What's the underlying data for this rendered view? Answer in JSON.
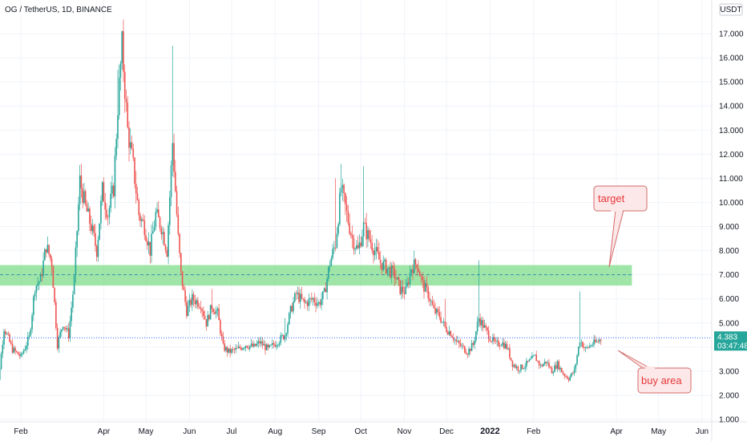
{
  "header": {
    "symbol_title": "OG / TetherUS, 1D, BINANCE"
  },
  "chart_data": {
    "type": "candlestick",
    "currency_label": "USDT",
    "y_ticks": [
      "1.000",
      "2.000",
      "3.000",
      "4.000",
      "5.000",
      "6.000",
      "7.000",
      "8.000",
      "9.000",
      "10.000",
      "11.000",
      "12.000",
      "13.000",
      "14.000",
      "15.000",
      "16.000",
      "17.000"
    ],
    "y_tick_values": [
      1,
      2,
      3,
      4,
      5,
      6,
      7,
      8,
      9,
      10,
      11,
      12,
      13,
      14,
      15,
      16,
      17
    ],
    "x_labels": [
      {
        "label": "Feb",
        "bold": false
      },
      {
        "label": "Apr",
        "bold": false
      },
      {
        "label": "May",
        "bold": false
      },
      {
        "label": "Jun",
        "bold": false
      },
      {
        "label": "Jul",
        "bold": false
      },
      {
        "label": "Aug",
        "bold": false
      },
      {
        "label": "Sep",
        "bold": false
      },
      {
        "label": "Oct",
        "bold": false
      },
      {
        "label": "Nov",
        "bold": false
      },
      {
        "label": "Dec",
        "bold": false
      },
      {
        "label": "2022",
        "bold": true
      },
      {
        "label": "Feb",
        "bold": false
      },
      {
        "label": "Apr",
        "bold": false
      },
      {
        "label": "May",
        "bold": false
      },
      {
        "label": "Jun",
        "bold": false
      }
    ],
    "x_label_days": [
      20,
      79,
      109,
      140,
      170,
      201,
      232,
      262,
      293,
      323,
      354,
      385,
      444,
      474,
      505
    ],
    "ylim": [
      0.8,
      17.6
    ],
    "x_range_days": [
      0,
      505
    ],
    "last_price": "4.383",
    "countdown": "03:47:48",
    "zone": {
      "low": 6.55,
      "high": 7.4,
      "mid": 7.0,
      "start_day": 0,
      "end_day": 455,
      "color": "#7ddc8a"
    },
    "price_path": [
      [
        0,
        4.0
      ],
      [
        4,
        2.6
      ],
      [
        8,
        4.8
      ],
      [
        14,
        3.9
      ],
      [
        20,
        3.6
      ],
      [
        26,
        4.4
      ],
      [
        30,
        6.5
      ],
      [
        34,
        6.8
      ],
      [
        38,
        8.2
      ],
      [
        42,
        7.5
      ],
      [
        46,
        4.1
      ],
      [
        50,
        5.0
      ],
      [
        54,
        4.5
      ],
      [
        58,
        6.8
      ],
      [
        62,
        10.9
      ],
      [
        66,
        9.8
      ],
      [
        70,
        9.0
      ],
      [
        74,
        8.0
      ],
      [
        78,
        10.5
      ],
      [
        82,
        9.5
      ],
      [
        86,
        10.6
      ],
      [
        89,
        14.0
      ],
      [
        92,
        16.5
      ],
      [
        96,
        13.0
      ],
      [
        100,
        11.5
      ],
      [
        104,
        9.5
      ],
      [
        108,
        9.0
      ],
      [
        112,
        8.0
      ],
      [
        116,
        9.5
      ],
      [
        120,
        9.0
      ],
      [
        124,
        8.0
      ],
      [
        128,
        12.5
      ],
      [
        132,
        8.5
      ],
      [
        134,
        7.0
      ],
      [
        138,
        5.5
      ],
      [
        142,
        6.0
      ],
      [
        148,
        5.8
      ],
      [
        152,
        5.0
      ],
      [
        156,
        5.7
      ],
      [
        160,
        5.4
      ],
      [
        164,
        4.0
      ],
      [
        168,
        3.8
      ],
      [
        174,
        3.9
      ],
      [
        180,
        4.1
      ],
      [
        186,
        4.0
      ],
      [
        190,
        4.2
      ],
      [
        196,
        3.9
      ],
      [
        202,
        4.2
      ],
      [
        208,
        4.5
      ],
      [
        212,
        5.5
      ],
      [
        216,
        6.2
      ],
      [
        222,
        5.8
      ],
      [
        228,
        6.0
      ],
      [
        232,
        5.8
      ],
      [
        236,
        6.2
      ],
      [
        240,
        7.5
      ],
      [
        244,
        8.3
      ],
      [
        248,
        10.6
      ],
      [
        252,
        9.5
      ],
      [
        256,
        8.5
      ],
      [
        260,
        8.0
      ],
      [
        264,
        9.0
      ],
      [
        268,
        8.5
      ],
      [
        272,
        8.0
      ],
      [
        276,
        7.5
      ],
      [
        282,
        7.2
      ],
      [
        286,
        7.0
      ],
      [
        290,
        6.4
      ],
      [
        294,
        6.3
      ],
      [
        298,
        7.3
      ],
      [
        302,
        7.5
      ],
      [
        306,
        6.6
      ],
      [
        310,
        6.2
      ],
      [
        314,
        5.5
      ],
      [
        318,
        5.3
      ],
      [
        322,
        4.8
      ],
      [
        326,
        4.6
      ],
      [
        330,
        4.2
      ],
      [
        334,
        4.0
      ],
      [
        338,
        3.8
      ],
      [
        342,
        4.1
      ],
      [
        346,
        5.2
      ],
      [
        350,
        4.8
      ],
      [
        354,
        4.4
      ],
      [
        358,
        4.1
      ],
      [
        362,
        4.2
      ],
      [
        366,
        4.0
      ],
      [
        370,
        3.3
      ],
      [
        374,
        3.1
      ],
      [
        378,
        3.2
      ],
      [
        382,
        3.4
      ],
      [
        386,
        3.6
      ],
      [
        390,
        3.2
      ],
      [
        394,
        3.4
      ],
      [
        398,
        3.0
      ],
      [
        402,
        3.3
      ],
      [
        406,
        2.9
      ],
      [
        410,
        2.7
      ],
      [
        414,
        3.0
      ],
      [
        418,
        4.3
      ],
      [
        422,
        3.9
      ],
      [
        426,
        4.1
      ],
      [
        430,
        4.2
      ],
      [
        433,
        4.35
      ]
    ]
  },
  "annotations": [
    {
      "text": "target",
      "box_color": "#fce8e8",
      "border": "#d46a6a"
    },
    {
      "text": "buy area",
      "box_color": "#fce8e8",
      "border": "#d46a6a"
    }
  ],
  "colors": {
    "up": "#26a69a",
    "down": "#ef5350",
    "grid": "#f0f3fa",
    "price_line": "#2962ff"
  }
}
